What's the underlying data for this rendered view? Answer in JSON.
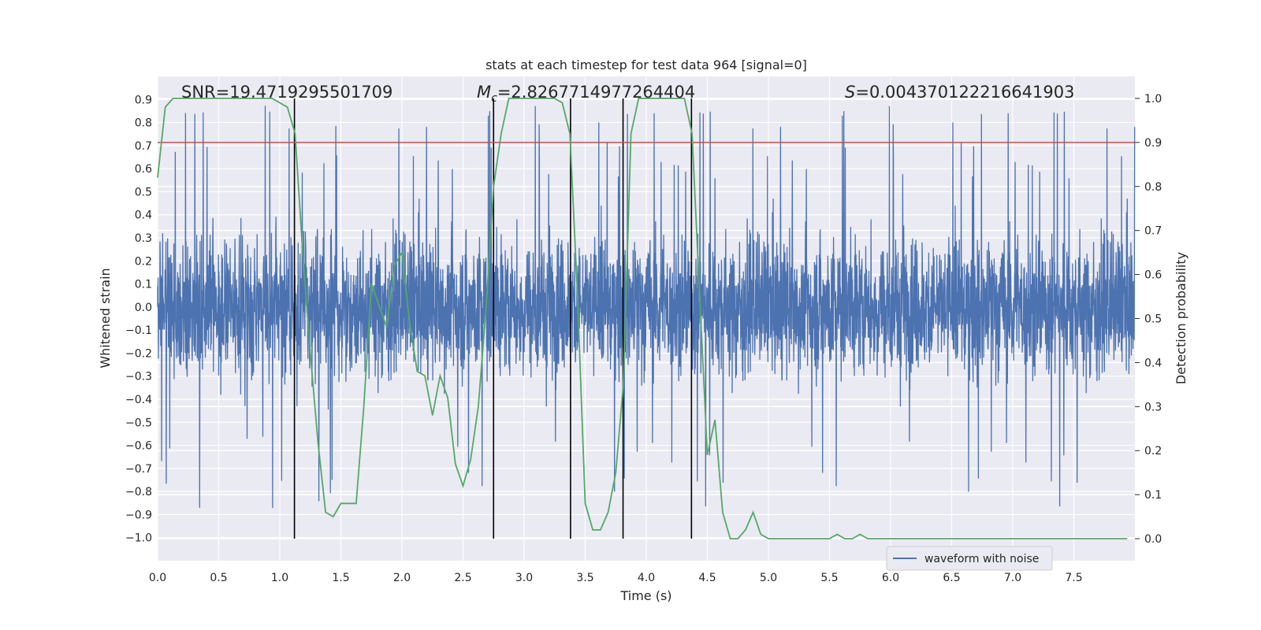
{
  "chart_data": {
    "type": "line",
    "title": "stats at each timestep for test data 964 [signal=0]",
    "xlabel": "Time (s)",
    "ylabel": "Whitened strain",
    "ylabel_right": "Detection probability",
    "xlim": [
      0.0,
      8.0
    ],
    "ylim": [
      -1.1,
      1.0
    ],
    "ylim_right": [
      -0.05,
      1.05
    ],
    "x_ticks": [
      "0.0",
      "0.5",
      "1.0",
      "1.5",
      "2.0",
      "2.5",
      "3.0",
      "3.5",
      "4.0",
      "4.5",
      "5.0",
      "5.5",
      "6.0",
      "6.5",
      "7.0",
      "7.5"
    ],
    "y_ticks": [
      "0.9",
      "0.8",
      "0.7",
      "0.6",
      "0.5",
      "0.4",
      "0.3",
      "0.2",
      "0.1",
      "0.0",
      "−0.1",
      "−0.2",
      "−0.3",
      "−0.4",
      "−0.5",
      "−0.6",
      "−0.7",
      "−0.8",
      "−0.9",
      "−1.0"
    ],
    "y_right_ticks": [
      "1.0",
      "0.9",
      "0.8",
      "0.7",
      "0.6",
      "0.5",
      "0.4",
      "0.3",
      "0.2",
      "0.1",
      "0.0"
    ],
    "grid": true,
    "legend_position": "lower-right",
    "annotations": {
      "snr": "SNR=19.4719295501709",
      "mc_symbol": "M",
      "mc_subscript": "c",
      "mc_value": "=2.8267714977264404",
      "s_symbol": "S",
      "s_value": "=0.004370122216641903"
    },
    "threshold": 0.9,
    "vertical_markers": [
      1.12,
      2.75,
      3.38,
      3.81,
      4.37
    ],
    "series": [
      {
        "name": "waveform with noise",
        "color": "#4c72b0",
        "style": "dense noise from about -0.65 to 0.65 with spikes up to 0.9 and down to -1.0"
      },
      {
        "color": "#55a868",
        "axis": "right",
        "x": [
          0.0,
          0.0625,
          0.125,
          0.1875,
          0.25,
          0.3125,
          0.375,
          0.4375,
          0.5,
          0.5625,
          0.625,
          0.6875,
          0.75,
          0.8125,
          0.875,
          0.9375,
          1.0,
          1.0625,
          1.125,
          1.1875,
          1.25,
          1.3125,
          1.375,
          1.4375,
          1.5,
          1.5625,
          1.625,
          1.6875,
          1.75,
          1.8125,
          1.875,
          1.9375,
          2.0,
          2.0625,
          2.125,
          2.1875,
          2.25,
          2.3125,
          2.375,
          2.4375,
          2.5,
          2.5625,
          2.625,
          2.6875,
          2.75,
          2.8125,
          2.875,
          2.9375,
          3.0,
          3.0625,
          3.125,
          3.1875,
          3.25,
          3.3125,
          3.375,
          3.4375,
          3.5,
          3.5625,
          3.625,
          3.6875,
          3.75,
          3.8125,
          3.875,
          3.9375,
          4.0,
          4.0625,
          4.125,
          4.1875,
          4.25,
          4.3125,
          4.375,
          4.4375,
          4.5,
          4.5625,
          4.625,
          4.6875,
          4.75,
          4.8125,
          4.875,
          4.9375,
          5.0,
          5.0625,
          5.125,
          5.1875,
          5.25,
          5.3125,
          5.375,
          5.4375,
          5.5,
          5.5625,
          5.625,
          5.6875,
          5.75,
          5.8125,
          5.875,
          6.0,
          6.25,
          6.5,
          6.75,
          6.875,
          7.0,
          7.125,
          7.25,
          7.375,
          7.5,
          7.625,
          7.75,
          7.875,
          7.9375
        ],
        "values": [
          0.82,
          0.98,
          1.0,
          1.0,
          1.0,
          1.0,
          1.0,
          1.0,
          1.0,
          1.0,
          1.0,
          1.0,
          1.0,
          1.0,
          1.0,
          1.0,
          0.99,
          0.98,
          0.92,
          0.65,
          0.42,
          0.22,
          0.06,
          0.05,
          0.08,
          0.08,
          0.08,
          0.3,
          0.58,
          0.53,
          0.48,
          0.62,
          0.65,
          0.49,
          0.38,
          0.37,
          0.28,
          0.37,
          0.32,
          0.17,
          0.12,
          0.18,
          0.3,
          0.52,
          0.8,
          0.92,
          1.0,
          1.0,
          1.0,
          1.0,
          1.0,
          1.0,
          1.0,
          0.99,
          0.92,
          0.55,
          0.08,
          0.02,
          0.02,
          0.06,
          0.15,
          0.35,
          0.92,
          1.0,
          1.0,
          1.0,
          1.0,
          1.0,
          1.0,
          1.0,
          0.92,
          0.55,
          0.19,
          0.27,
          0.06,
          0.0,
          0.0,
          0.02,
          0.06,
          0.01,
          0.0,
          0.0,
          0.0,
          0.0,
          0.0,
          0.0,
          0.0,
          0.0,
          0.0,
          0.01,
          0.0,
          0.0,
          0.01,
          0.0,
          0.0,
          0.0,
          0.0,
          0.0,
          0.0,
          0.0,
          0.0,
          0.0,
          0.0,
          0.0,
          0.0,
          0.0,
          0.0,
          0.0,
          0.0
        ]
      }
    ]
  }
}
